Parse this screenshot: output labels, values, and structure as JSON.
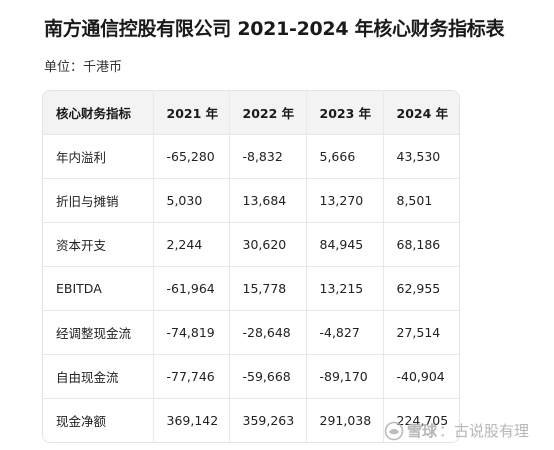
{
  "title": "南方通信控股有限公司 2021-2024 年核心财务指标表",
  "unit": "单位：千港币",
  "table": {
    "headers": [
      "核心财务指标",
      "2021 年",
      "2022 年",
      "2023 年",
      "2024 年"
    ],
    "rows": [
      [
        "年内溢利",
        "-65,280",
        "-8,832",
        "5,666",
        "43,530"
      ],
      [
        "折旧与摊销",
        "5,030",
        "13,684",
        "13,270",
        "8,501"
      ],
      [
        "资本开支",
        "2,244",
        "30,620",
        "84,945",
        "68,186"
      ],
      [
        "EBITDA",
        "-61,964",
        "15,778",
        "13,215",
        "62,955"
      ],
      [
        "经调整现金流",
        "-74,819",
        "-28,648",
        "-4,827",
        "27,514"
      ],
      [
        "自由现金流",
        "-77,746",
        "-59,668",
        "-89,170",
        "-40,904"
      ],
      [
        "现金净额",
        "369,142",
        "359,263",
        "291,038",
        "224,705"
      ]
    ]
  },
  "watermark": {
    "icon": "snowball-logo-icon",
    "brand": "雪球",
    "author": "古说股有理",
    "separator": "："
  }
}
